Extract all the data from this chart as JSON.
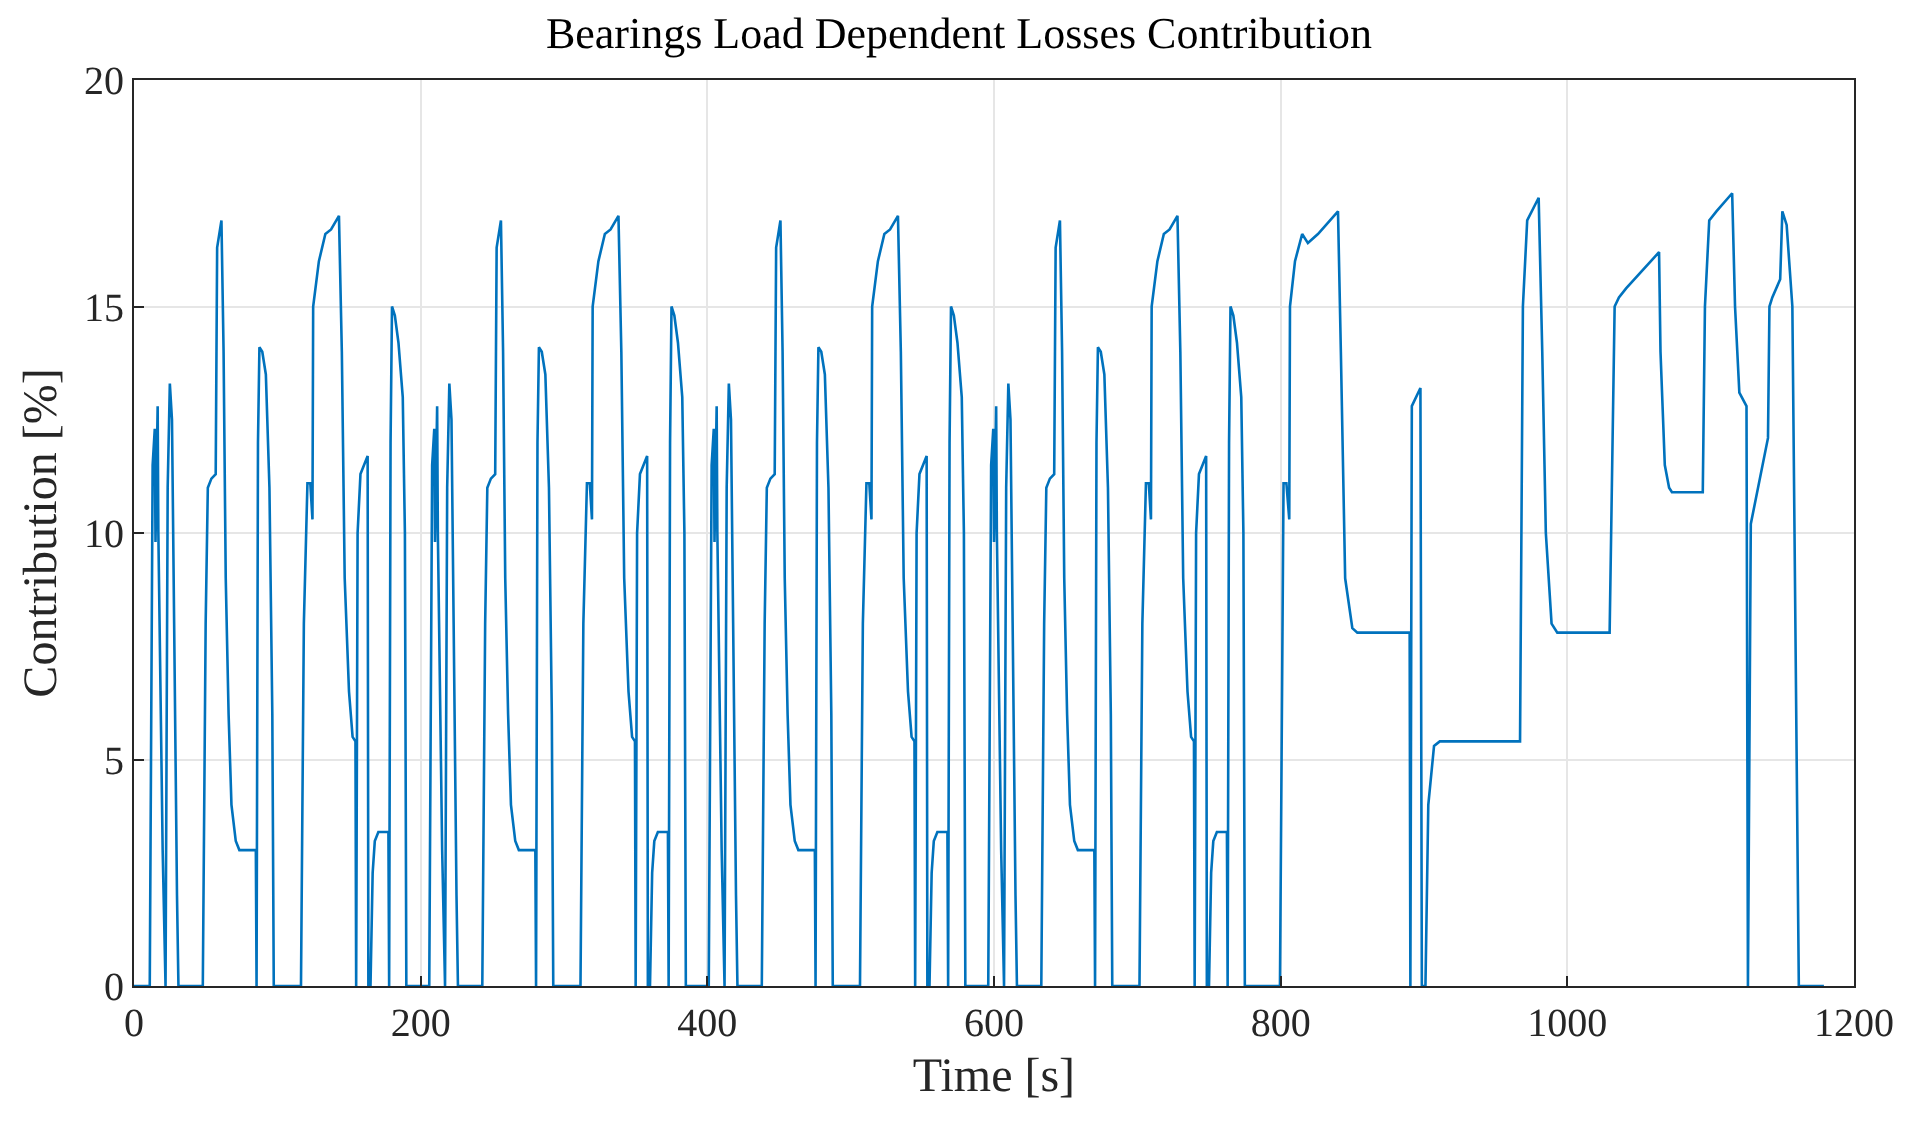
{
  "chart_data": {
    "type": "line",
    "title": "Bearings Load Dependent Losses Contribution",
    "xlabel": "Time [s]",
    "ylabel": "Contribution [%]",
    "xlim": [
      0,
      1200
    ],
    "xticks": [
      0,
      200,
      400,
      600,
      800,
      1000,
      1200
    ],
    "ylim": [
      0,
      20
    ],
    "yticks": [
      0,
      5,
      10,
      15,
      20
    ],
    "grid": true,
    "series": [
      {
        "color": "#0072bd",
        "x": [
          0,
          11,
          13,
          14.5,
          15,
          16.5,
          17,
          20,
          22,
          23.5,
          25,
          26.5,
          28,
          30,
          31,
          48,
          50,
          51.5,
          54,
          57,
          58,
          61,
          62.5,
          64,
          66,
          68,
          71,
          73.5,
          85,
          85.5,
          86.5,
          87.5,
          89.5,
          92,
          94.5,
          96.5,
          97.5,
          116.5,
          118.5,
          121,
          123,
          124.5,
          125,
          129,
          133.5,
          137.5,
          143,
          145,
          147,
          150,
          152.5,
          154.5,
          155,
          156,
          158,
          163,
          163.5,
          165,
          166.5,
          168,
          170.5,
          177.5,
          178,
          179,
          180,
          182,
          184.5,
          187.5,
          189,
          190,
          206,
          208,
          209.5,
          210,
          211.5,
          212,
          215,
          217,
          218.5,
          220,
          221.5,
          223,
          225,
          226,
          243,
          245,
          246.5,
          249,
          252,
          253,
          256,
          257.5,
          259,
          261,
          263,
          266,
          268.5,
          280,
          280.5,
          281.5,
          282.5,
          284.5,
          287,
          289.5,
          291.5,
          292.5,
          311.5,
          313.5,
          316,
          318,
          319.5,
          320,
          324,
          328.5,
          332.5,
          338,
          340,
          342,
          345,
          347.5,
          349.5,
          350,
          351,
          353,
          358,
          358.5,
          360,
          361.5,
          363,
          365.5,
          372.5,
          373,
          374,
          375,
          377,
          379.5,
          382.5,
          384,
          385,
          401,
          403,
          404.5,
          405,
          406.5,
          407,
          410,
          412,
          413.5,
          415,
          416.5,
          418,
          420,
          421,
          438,
          440,
          441.5,
          444,
          447,
          448,
          451,
          452.5,
          454,
          456,
          458,
          461,
          463.5,
          475,
          475.5,
          476.5,
          477.5,
          479.5,
          482,
          484.5,
          486.5,
          487.5,
          506.5,
          508.5,
          511,
          513,
          514.5,
          515,
          519,
          523.5,
          527.5,
          533,
          535,
          537,
          540,
          542.5,
          544.5,
          545,
          546,
          548,
          553,
          553.5,
          555,
          556.5,
          558,
          560.5,
          567.5,
          568,
          569,
          570,
          572,
          574.5,
          577.5,
          579,
          580,
          596,
          598,
          599.5,
          600,
          601.5,
          602,
          605,
          607,
          608.5,
          610,
          611.5,
          613,
          615,
          616,
          633,
          635,
          636.5,
          639,
          642,
          643,
          646,
          647.5,
          649,
          651,
          653,
          656,
          658.5,
          670,
          670.5,
          671.5,
          672.5,
          674.5,
          677,
          679.5,
          681.5,
          682.5,
          701.5,
          703.5,
          706,
          708,
          709.5,
          710,
          714,
          718.5,
          722.5,
          728,
          730,
          732,
          735,
          737.5,
          739.5,
          740,
          741,
          743,
          748,
          748.5,
          750,
          751.5,
          753,
          755.5,
          762.5,
          763,
          764,
          765,
          767,
          769.5,
          772.5,
          774,
          775,
          799.5,
          802,
          804,
          806,
          806.5,
          810,
          815,
          819,
          826,
          840,
          842,
          845,
          850,
          853.5,
          890,
          890.5,
          891.5,
          897.5,
          898.5,
          901,
          903,
          907,
          911,
          967,
          969,
          972,
          980,
          982.5,
          985,
          989,
          993,
          1029.5,
          1033,
          1036,
          1041,
          1064,
          1065,
          1068,
          1071,
          1073,
          1094.5,
          1096,
          1099,
          1104,
          1115,
          1117,
          1120,
          1125,
          1126,
          1128,
          1140,
          1141,
          1143,
          1148.5,
          1150,
          1153,
          1157,
          1158.5,
          1161.5,
          1179
        ],
        "values": [
          0,
          0,
          11.5,
          12.3,
          9.8,
          12.8,
          10,
          3,
          0,
          11,
          13.3,
          12.5,
          8,
          2,
          0,
          0,
          8,
          11,
          11.2,
          11.3,
          16.3,
          16.9,
          14,
          9,
          6,
          4,
          3.2,
          3,
          3,
          0,
          12,
          14.1,
          14,
          13.5,
          11,
          6,
          0,
          0,
          8,
          11.1,
          11.1,
          10.3,
          15,
          16,
          16.6,
          16.7,
          17,
          14,
          9,
          6.5,
          5.5,
          5.4,
          0,
          10,
          11.3,
          11.7,
          0,
          0,
          2.5,
          3.2,
          3.4,
          3.4,
          0,
          12,
          15,
          14.8,
          14.2,
          13,
          10,
          0,
          0,
          11.5,
          12.3,
          9.8,
          12.8,
          10,
          3,
          0,
          11,
          13.3,
          12.5,
          8,
          2,
          0,
          0,
          8,
          11,
          11.2,
          11.3,
          16.3,
          16.9,
          14,
          9,
          6,
          4,
          3.2,
          3,
          3,
          0,
          12,
          14.1,
          14,
          13.5,
          11,
          6,
          0,
          0,
          8,
          11.1,
          11.1,
          10.3,
          15,
          16,
          16.6,
          16.7,
          17,
          14,
          9,
          6.5,
          5.5,
          5.4,
          0,
          10,
          11.3,
          11.7,
          0,
          0,
          2.5,
          3.2,
          3.4,
          3.4,
          0,
          12,
          15,
          14.8,
          14.2,
          13,
          10,
          0,
          0,
          11.5,
          12.3,
          9.8,
          12.8,
          10,
          3,
          0,
          11,
          13.3,
          12.5,
          8,
          2,
          0,
          0,
          8,
          11,
          11.2,
          11.3,
          16.3,
          16.9,
          14,
          9,
          6,
          4,
          3.2,
          3,
          3,
          0,
          12,
          14.1,
          14,
          13.5,
          11,
          6,
          0,
          0,
          8,
          11.1,
          11.1,
          10.3,
          15,
          16,
          16.6,
          16.7,
          17,
          14,
          9,
          6.5,
          5.5,
          5.4,
          0,
          10,
          11.3,
          11.7,
          0,
          0,
          2.5,
          3.2,
          3.4,
          3.4,
          0,
          12,
          15,
          14.8,
          14.2,
          13,
          10,
          0,
          0,
          11.5,
          12.3,
          9.8,
          12.8,
          10,
          3,
          0,
          11,
          13.3,
          12.5,
          8,
          2,
          0,
          0,
          8,
          11,
          11.2,
          11.3,
          16.3,
          16.9,
          14,
          9,
          6,
          4,
          3.2,
          3,
          3,
          0,
          12,
          14.1,
          14,
          13.5,
          11,
          6,
          0,
          0,
          8,
          11.1,
          11.1,
          10.3,
          15,
          16,
          16.6,
          16.7,
          17,
          14,
          9,
          6.5,
          5.5,
          5.4,
          0,
          10,
          11.3,
          11.7,
          0,
          0,
          2.5,
          3.2,
          3.4,
          3.4,
          0,
          12,
          15,
          14.8,
          14.2,
          13,
          10,
          0,
          0,
          11.1,
          11.1,
          10.3,
          15,
          16,
          16.6,
          16.4,
          16.6,
          17.1,
          14,
          9,
          7.9,
          7.8,
          7.8,
          0,
          12.8,
          13.2,
          0,
          0,
          4,
          5.3,
          5.4,
          5.4,
          15,
          16.9,
          17.4,
          14,
          10,
          8,
          7.8,
          7.8,
          15,
          15.2,
          15.4,
          16.2,
          14,
          11.5,
          11,
          10.9,
          10.9,
          15,
          16.9,
          17.1,
          17.5,
          15,
          13.1,
          12.8,
          0,
          10.2,
          12.1,
          15,
          15.2,
          15.6,
          17.1,
          16.8,
          15,
          10,
          0,
          0
        ]
      }
    ]
  }
}
